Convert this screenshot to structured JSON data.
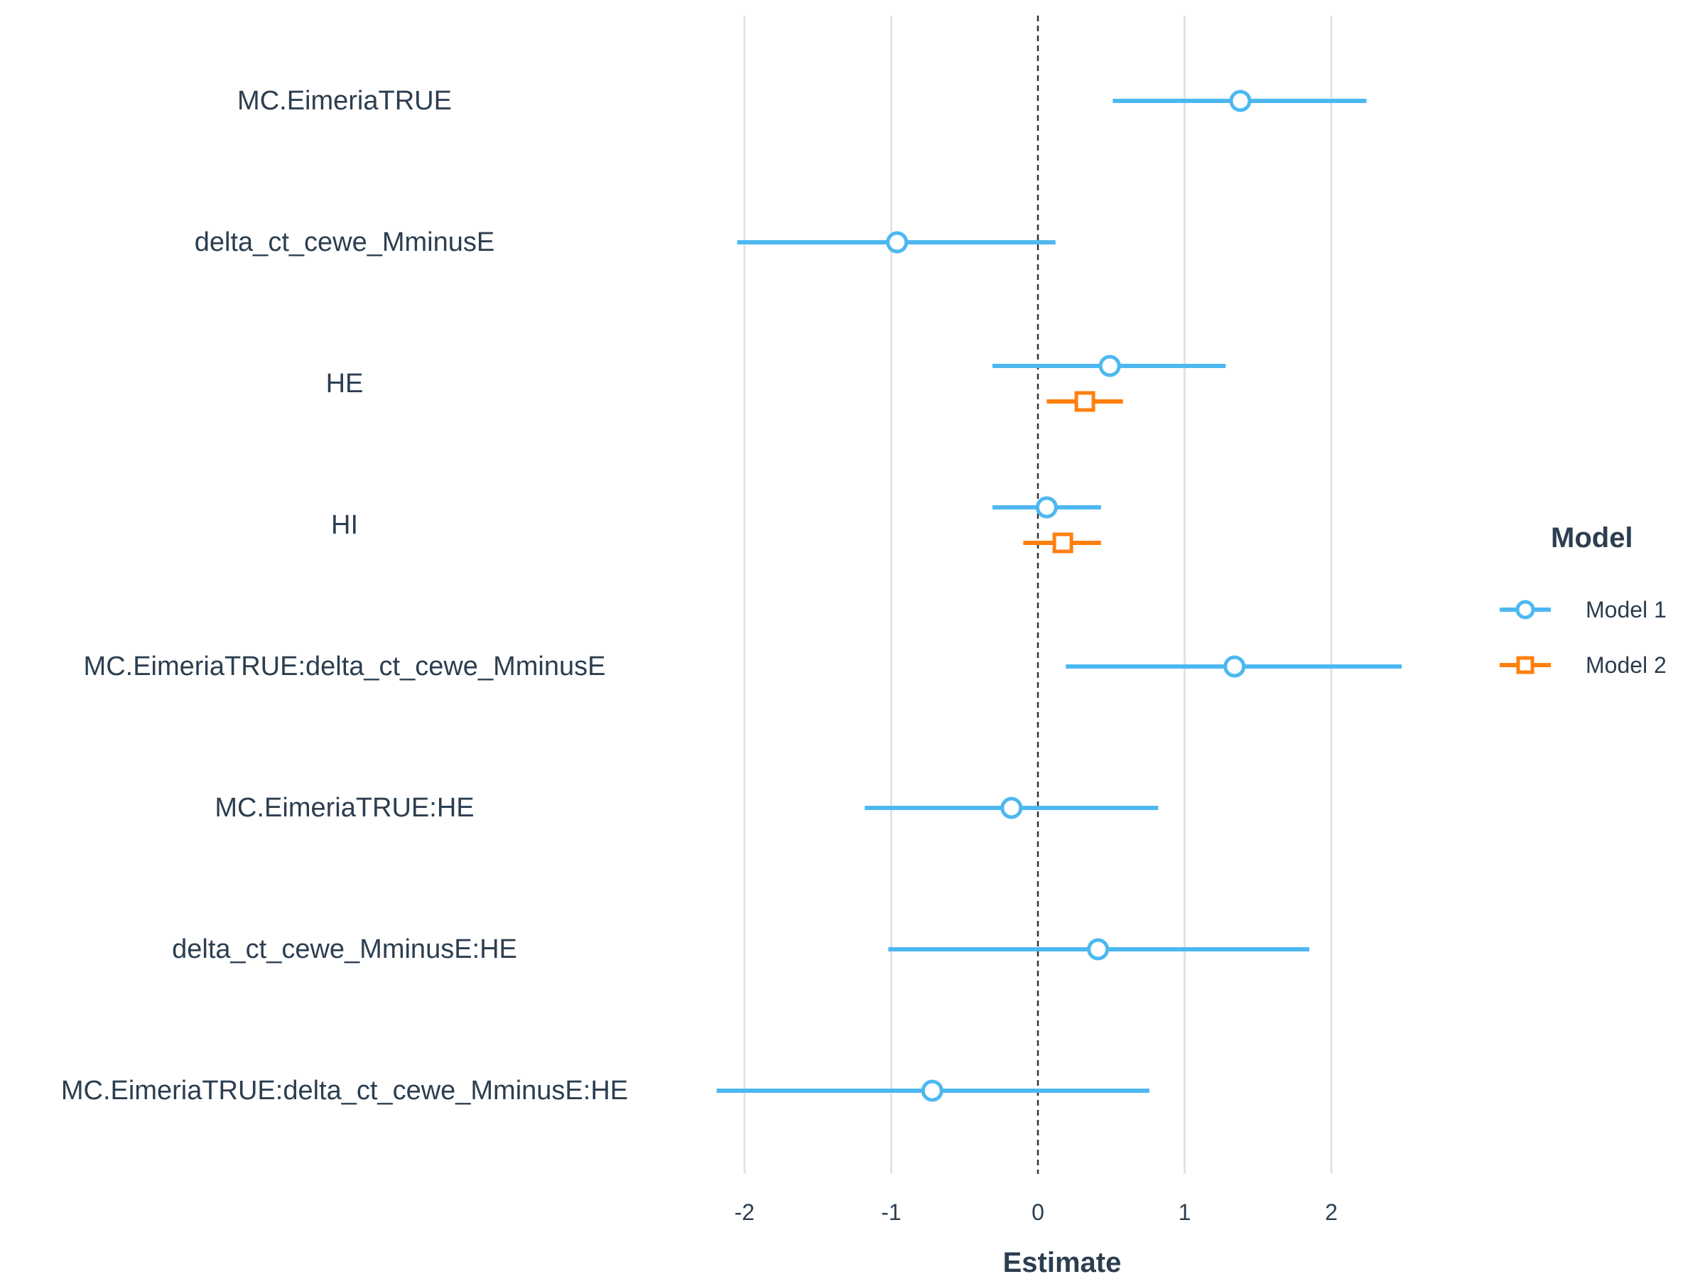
{
  "chart_data": {
    "type": "coefficient-plot",
    "xlabel": "Estimate",
    "xlim": [
      -2.5,
      2.6
    ],
    "x_ticks": [
      -2,
      -1,
      0,
      1,
      2
    ],
    "x_tick_labels": [
      "-2",
      "-1",
      "0",
      "1",
      "2"
    ],
    "grid": "vertical major",
    "reference_line": {
      "x": 0,
      "style": "dashed"
    },
    "terms": [
      "MC.EimeriaTRUE",
      "delta_ct_cewe_MminusE",
      "HE",
      "HI",
      "MC.EimeriaTRUE:delta_ct_cewe_MminusE",
      "MC.EimeriaTRUE:HE",
      "delta_ct_cewe_MminusE:HE",
      "MC.EimeriaTRUE:delta_ct_cewe_MminusE:HE"
    ],
    "legend": {
      "title": "Model",
      "position": "right"
    },
    "series": [
      {
        "name": "Model 1",
        "color": "#4db8f0",
        "marker": "circle",
        "points": [
          {
            "term": "MC.EimeriaTRUE",
            "estimate": 1.38,
            "low": 0.51,
            "high": 2.24
          },
          {
            "term": "delta_ct_cewe_MminusE",
            "estimate": -0.96,
            "low": -2.05,
            "high": 0.12
          },
          {
            "term": "HE",
            "estimate": 0.49,
            "low": -0.31,
            "high": 1.28
          },
          {
            "term": "HI",
            "estimate": 0.06,
            "low": -0.31,
            "high": 0.43
          },
          {
            "term": "MC.EimeriaTRUE:delta_ct_cewe_MminusE",
            "estimate": 1.34,
            "low": 0.19,
            "high": 2.48
          },
          {
            "term": "MC.EimeriaTRUE:HE",
            "estimate": -0.18,
            "low": -1.18,
            "high": 0.82
          },
          {
            "term": "delta_ct_cewe_MminusE:HE",
            "estimate": 0.41,
            "low": -1.02,
            "high": 1.85
          },
          {
            "term": "MC.EimeriaTRUE:delta_ct_cewe_MminusE:HE",
            "estimate": -0.72,
            "low": -2.19,
            "high": 0.76
          }
        ]
      },
      {
        "name": "Model 2",
        "color": "#ff7f0e",
        "marker": "square",
        "points": [
          {
            "term": "HE",
            "estimate": 0.32,
            "low": 0.06,
            "high": 0.58
          },
          {
            "term": "HI",
            "estimate": 0.17,
            "low": -0.1,
            "high": 0.43
          }
        ]
      }
    ]
  }
}
